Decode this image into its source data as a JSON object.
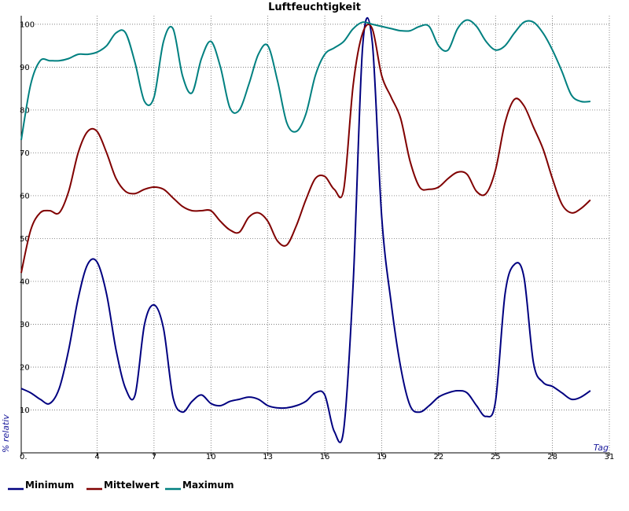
{
  "chart_data": {
    "type": "line",
    "title": "Luftfeuchtigkeit",
    "xlabel": "Tag",
    "ylabel": "% relativ",
    "xlim": [
      0,
      31
    ],
    "ylim": [
      0,
      102
    ],
    "x_ticks": [
      "0.",
      "4",
      "7",
      "10",
      "13",
      "16",
      "19",
      "22",
      "25",
      "28",
      "31"
    ],
    "x_tick_values": [
      0,
      4,
      7,
      10,
      13,
      16,
      19,
      22,
      25,
      28,
      31
    ],
    "y_ticks": [
      10,
      20,
      30,
      40,
      50,
      60,
      70,
      80,
      90,
      100
    ],
    "grid": true,
    "legend_position": "bottom",
    "series": [
      {
        "name": "Minimum",
        "color": "#000080",
        "x": [
          0,
          0.5,
          1,
          1.5,
          2,
          2.5,
          3,
          3.5,
          4,
          4.5,
          5,
          5.5,
          6,
          6.5,
          7,
          7.5,
          8,
          8.5,
          9,
          9.5,
          10,
          10.5,
          11,
          11.5,
          12,
          12.5,
          13,
          13.5,
          14,
          14.5,
          15,
          15.5,
          16,
          16.5,
          17,
          17.5,
          18,
          18.5,
          19,
          19.5,
          20,
          20.5,
          21,
          21.5,
          22,
          22.5,
          23,
          23.5,
          24,
          24.5,
          25,
          25.5,
          26,
          26.5,
          27,
          27.5,
          28,
          28.5,
          29,
          29.5,
          30
        ],
        "values": [
          15,
          14,
          12.5,
          11.5,
          15,
          24,
          36,
          44,
          44.5,
          37,
          24,
          15,
          13.5,
          30,
          34.5,
          29,
          13,
          9.5,
          12,
          13.5,
          11.5,
          11,
          12,
          12.5,
          13,
          12.5,
          11,
          10.5,
          10.5,
          11,
          12,
          14,
          13.5,
          5,
          5.5,
          40,
          95,
          96,
          55,
          35,
          20,
          11,
          9.5,
          11,
          13,
          14,
          14.5,
          14,
          11,
          8.5,
          12,
          37,
          44,
          41,
          21,
          16.5,
          15.5,
          14,
          12.5,
          13,
          14.5
        ]
      },
      {
        "name": "Mittelwert",
        "color": "#800000",
        "x": [
          0,
          0.5,
          1,
          1.5,
          2,
          2.5,
          3,
          3.5,
          4,
          4.5,
          5,
          5.5,
          6,
          6.5,
          7,
          7.5,
          8,
          8.5,
          9,
          9.5,
          10,
          10.5,
          11,
          11.5,
          12,
          12.5,
          13,
          13.5,
          14,
          14.5,
          15,
          15.5,
          16,
          16.5,
          17,
          17.5,
          18,
          18.5,
          19,
          19.5,
          20,
          20.5,
          21,
          21.5,
          22,
          22.5,
          23,
          23.5,
          24,
          24.5,
          25,
          25.5,
          26,
          26.5,
          27,
          27.5,
          28,
          28.5,
          29,
          29.5,
          30
        ],
        "values": [
          42,
          52,
          56,
          56.5,
          56,
          61,
          70,
          75,
          75,
          70,
          64,
          61,
          60.5,
          61.5,
          62,
          61.5,
          59.5,
          57.5,
          56.5,
          56.5,
          56.5,
          54,
          52,
          51.5,
          55,
          56,
          54,
          49.5,
          48.5,
          53,
          59,
          64,
          64.5,
          61.5,
          61.5,
          86,
          98,
          99,
          88,
          83,
          78,
          68,
          62,
          61.5,
          62,
          64,
          65.5,
          65,
          61,
          60.5,
          66,
          77,
          82.5,
          81,
          76,
          71,
          64,
          58,
          56,
          57,
          59
        ]
      },
      {
        "name": "Maximum",
        "color": "#008080",
        "x": [
          0,
          0.5,
          1,
          1.5,
          2,
          2.5,
          3,
          3.5,
          4,
          4.5,
          5,
          5.5,
          6,
          6.5,
          7,
          7.5,
          8,
          8.5,
          9,
          9.5,
          10,
          10.5,
          11,
          11.5,
          12,
          12.5,
          13,
          13.5,
          14,
          14.5,
          15,
          15.5,
          16,
          16.5,
          17,
          17.5,
          18,
          18.5,
          19,
          19.5,
          20,
          20.5,
          21,
          21.5,
          22,
          22.5,
          23,
          23.5,
          24,
          24.5,
          25,
          25.5,
          26,
          26.5,
          27,
          27.5,
          28,
          28.5,
          29,
          29.5,
          30
        ],
        "values": [
          73,
          86,
          91.5,
          91.5,
          91.5,
          92,
          93,
          93,
          93.5,
          95,
          98,
          98,
          91,
          82,
          83,
          96,
          99,
          88,
          84,
          92,
          96,
          90,
          80.5,
          80,
          86,
          93,
          95,
          87,
          77,
          75,
          79,
          88,
          93,
          94.5,
          96,
          99,
          100.5,
          100,
          99.5,
          99,
          98.5,
          98.5,
          99.5,
          99.5,
          95,
          94,
          99,
          101,
          99.5,
          96,
          94,
          95,
          98,
          100.5,
          100.5,
          98,
          94,
          89,
          83.5,
          82,
          82
        ]
      }
    ]
  }
}
